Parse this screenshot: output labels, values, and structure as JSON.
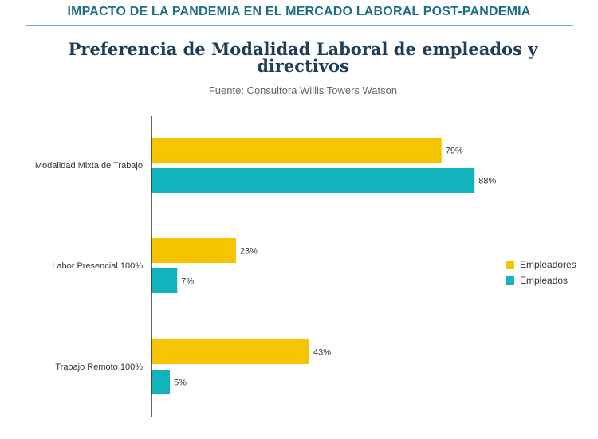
{
  "header": {
    "title": "IMPACTO DE LA PANDEMIA EN EL MERCADO LABORAL POST-PANDEMIA"
  },
  "colors": {
    "empleadores": "#f5c400",
    "empleados": "#12b3bd",
    "axis": "#333333"
  },
  "chart_data": {
    "type": "bar",
    "orientation": "horizontal",
    "title": "Preferencia de Modalidad Laboral de empleados y directivos",
    "subtitle": "Fuente: Consultora Willis Towers Watson",
    "categories": [
      "Modalidad Mixta de Trabajo",
      "Labor Presencial 100%",
      "Trabajo Remoto 100%"
    ],
    "series": [
      {
        "name": "Empleadores",
        "values": [
          79,
          23,
          43
        ],
        "labels": [
          "79%",
          "23%",
          "43%"
        ]
      },
      {
        "name": "Empleados",
        "values": [
          88,
          7,
          5
        ],
        "labels": [
          "88%",
          "7%",
          "5%"
        ]
      }
    ],
    "xlim": [
      0,
      100
    ],
    "grid": false,
    "legend": "right"
  }
}
